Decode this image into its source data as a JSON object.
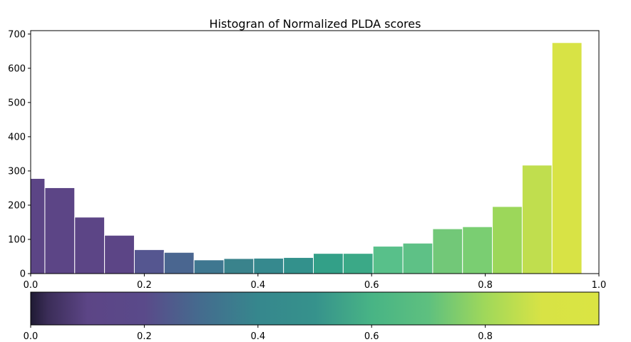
{
  "chart_data": [
    {
      "type": "bar",
      "title": "Histogran of Normalized PLDA scores",
      "xlabel": "",
      "ylabel": "",
      "xlim": [
        0,
        1
      ],
      "ylim": [
        0,
        710
      ],
      "xticks": [
        "0.0",
        "0.2",
        "0.4",
        "0.6",
        "0.8",
        "1.0"
      ],
      "yticks": [
        "0",
        "100",
        "200",
        "300",
        "400",
        "500",
        "600",
        "700"
      ],
      "grid": false,
      "bin_width": 0.0525,
      "bins": [
        {
          "x0": 0.0,
          "x1": 0.025,
          "value": 278,
          "color": "#5c4586"
        },
        {
          "x0": 0.025,
          "x1": 0.0775,
          "value": 251,
          "color": "#5c4586"
        },
        {
          "x0": 0.0775,
          "x1": 0.13,
          "value": 165,
          "color": "#5c4586"
        },
        {
          "x0": 0.13,
          "x1": 0.1825,
          "value": 112,
          "color": "#5c4586"
        },
        {
          "x0": 0.1825,
          "x1": 0.235,
          "value": 70,
          "color": "#555690"
        },
        {
          "x0": 0.235,
          "x1": 0.2875,
          "value": 62,
          "color": "#4a6690"
        },
        {
          "x0": 0.2875,
          "x1": 0.34,
          "value": 40,
          "color": "#3f7790"
        },
        {
          "x0": 0.34,
          "x1": 0.3925,
          "value": 44,
          "color": "#3a838c"
        },
        {
          "x0": 0.3925,
          "x1": 0.445,
          "value": 45,
          "color": "#36898e"
        },
        {
          "x0": 0.445,
          "x1": 0.4975,
          "value": 47,
          "color": "#33918c"
        },
        {
          "x0": 0.4975,
          "x1": 0.55,
          "value": 59,
          "color": "#33a088"
        },
        {
          "x0": 0.55,
          "x1": 0.6025,
          "value": 59,
          "color": "#3ba987"
        },
        {
          "x0": 0.6025,
          "x1": 0.655,
          "value": 80,
          "color": "#58c08a"
        },
        {
          "x0": 0.655,
          "x1": 0.7075,
          "value": 89,
          "color": "#5ec186"
        },
        {
          "x0": 0.7075,
          "x1": 0.76,
          "value": 131,
          "color": "#72c878"
        },
        {
          "x0": 0.76,
          "x1": 0.8125,
          "value": 137,
          "color": "#7ace72"
        },
        {
          "x0": 0.8125,
          "x1": 0.865,
          "value": 196,
          "color": "#9cd75a"
        },
        {
          "x0": 0.865,
          "x1": 0.9175,
          "value": 317,
          "color": "#c0de4e"
        },
        {
          "x0": 0.9175,
          "x1": 0.97,
          "value": 675,
          "color": "#d8e345"
        }
      ]
    },
    {
      "type": "heatmap",
      "title": "",
      "xlim": [
        0,
        1
      ],
      "xticks": [
        "0.0",
        "0.2",
        "0.4",
        "0.6",
        "0.8"
      ],
      "colormap": "viridis",
      "stops": [
        {
          "at": 0.0,
          "color": "#1f1a33"
        },
        {
          "at": 0.03,
          "color": "#3b2d58"
        },
        {
          "at": 0.1,
          "color": "#5c4586"
        },
        {
          "at": 0.2,
          "color": "#5a4a8a"
        },
        {
          "at": 0.3,
          "color": "#446c8e"
        },
        {
          "at": 0.4,
          "color": "#36878d"
        },
        {
          "at": 0.5,
          "color": "#36928c"
        },
        {
          "at": 0.6,
          "color": "#48b485"
        },
        {
          "at": 0.7,
          "color": "#5ec07f"
        },
        {
          "at": 0.8,
          "color": "#a0d85a"
        },
        {
          "at": 0.9,
          "color": "#d8e345"
        },
        {
          "at": 1.0,
          "color": "#dae443"
        }
      ]
    }
  ]
}
